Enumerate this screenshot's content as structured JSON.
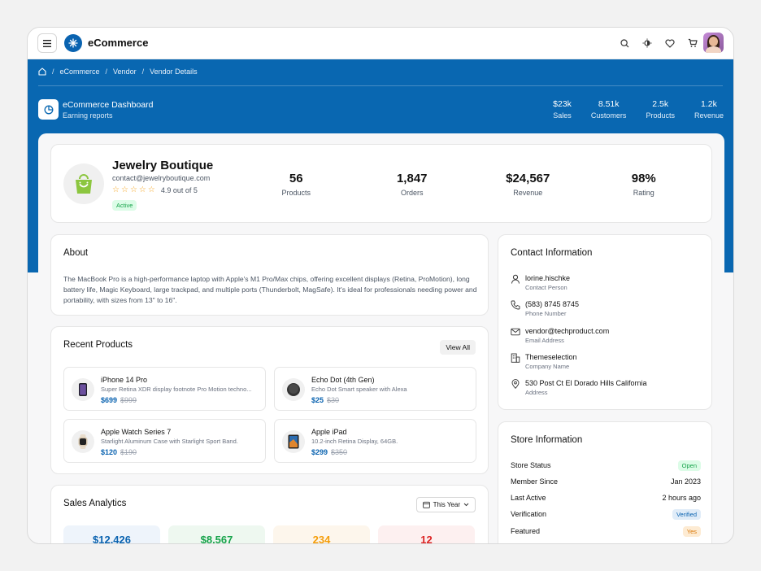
{
  "app": {
    "title": "eCommerce"
  },
  "breadcrumb": [
    "eCommerce",
    "Vendor",
    "Vendor Details"
  ],
  "dashboard": {
    "title": "eCommerce Dashboard",
    "subtitle": "Earning reports"
  },
  "kpis": [
    {
      "value": "$23k",
      "label": "Sales"
    },
    {
      "value": "8.51k",
      "label": "Customers"
    },
    {
      "value": "2.5k",
      "label": "Products"
    },
    {
      "value": "1.2k",
      "label": "Revenue"
    }
  ],
  "vendor": {
    "name": "Jewelry Boutique",
    "email": "contact@jewelryboutique.com",
    "rating_text": "4.9 out of 5",
    "rating_stars": 5,
    "status": "Active",
    "stats": [
      {
        "value": "56",
        "label": "Products"
      },
      {
        "value": "1,847",
        "label": "Orders"
      },
      {
        "value": "$24,567",
        "label": "Revenue"
      },
      {
        "value": "98%",
        "label": "Rating"
      }
    ]
  },
  "about": {
    "title": "About",
    "text": "The MacBook Pro is a high-performance laptop with Apple's M1 Pro/Max chips, offering excellent displays (Retina, ProMotion), long battery life, Magic Keyboard, large trackpad, and multiple ports (Thunderbolt, MagSafe). It's ideal for professionals needing power and portability, with sizes from 13\" to 16\"."
  },
  "recent_products": {
    "title": "Recent Products",
    "view_all": "View All",
    "items": [
      {
        "name": "iPhone 14 Pro",
        "desc": "Super Retina XDR display footnote Pro Motion techno...",
        "price": "$699",
        "old_price": "$999"
      },
      {
        "name": "Echo Dot (4th Gen)",
        "desc": "Echo Dot Smart speaker with Alexa",
        "price": "$25",
        "old_price": "$30"
      },
      {
        "name": "Apple Watch Series 7",
        "desc": "Starlight Aluminum Case with Starlight Sport Band.",
        "price": "$120",
        "old_price": "$190"
      },
      {
        "name": "Apple iPad",
        "desc": "10.2-inch Retina Display, 64GB.",
        "price": "$299",
        "old_price": "$350"
      }
    ]
  },
  "sales": {
    "title": "Sales Analytics",
    "period": "This Year",
    "tiles": [
      {
        "value": "$12,426",
        "color": "#0a63b0",
        "bg": "#eef4fb"
      },
      {
        "value": "$8,567",
        "color": "#16a34a",
        "bg": "#eef8f0"
      },
      {
        "value": "234",
        "color": "#f59e0b",
        "bg": "#fdf6ec"
      },
      {
        "value": "12",
        "color": "#dc2626",
        "bg": "#fdf0f0"
      }
    ]
  },
  "contact": {
    "title": "Contact Information",
    "items": [
      {
        "icon": "user-icon",
        "value": "lorine.hischke",
        "label": "Contact Person"
      },
      {
        "icon": "phone-icon",
        "value": "(583) 8745 8745",
        "label": "Phone Number"
      },
      {
        "icon": "mail-icon",
        "value": "vendor@techproduct.com",
        "label": "Email Address"
      },
      {
        "icon": "building-icon",
        "value": "Themeselection",
        "label": "Company Name"
      },
      {
        "icon": "map-pin-icon",
        "value": "530 Post Ct El Dorado Hills California",
        "label": "Address"
      }
    ]
  },
  "store": {
    "title": "Store Information",
    "rows": [
      {
        "label": "Store Status",
        "value": "Open",
        "pill": true,
        "color": "#16a34a",
        "bg": "#dcfce7"
      },
      {
        "label": "Member Since",
        "value": "Jan 2023",
        "pill": false
      },
      {
        "label": "Last Active",
        "value": "2 hours ago",
        "pill": false
      },
      {
        "label": "Verification",
        "value": "Verified",
        "pill": true,
        "color": "#0a63b0",
        "bg": "#e0ecf8"
      },
      {
        "label": "Featured",
        "value": "Yes",
        "pill": true,
        "color": "#d97706",
        "bg": "#fdebd3"
      }
    ]
  },
  "colors": {
    "primary": "#0967b1",
    "success": "#16a34a",
    "warning": "#f59e0b",
    "danger": "#dc2626"
  }
}
